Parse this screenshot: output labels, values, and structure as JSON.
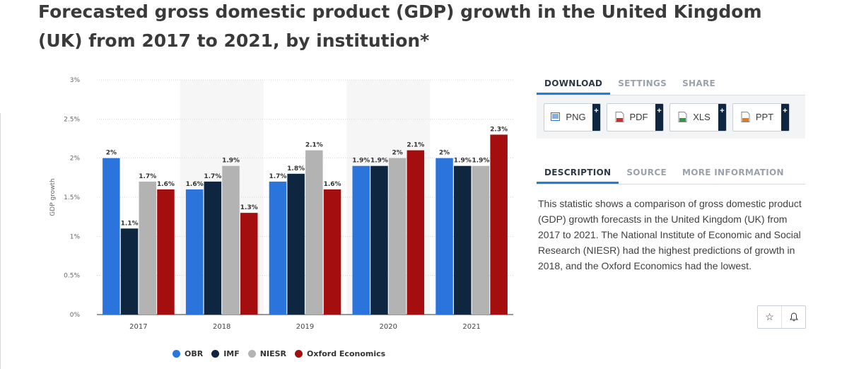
{
  "title": "Forecasted gross domestic product (GDP) growth in the United Kingdom (UK) from 2017 to 2021, by institution*",
  "chart_data": {
    "type": "bar",
    "categories": [
      "2017",
      "2018",
      "2019",
      "2020",
      "2021"
    ],
    "series": [
      {
        "name": "OBR",
        "color": "#2a74dc",
        "values": [
          2,
          1.6,
          1.7,
          1.9,
          2
        ],
        "labels": [
          "2%",
          "1.6%",
          "1.7%",
          "1.9%",
          "2%"
        ]
      },
      {
        "name": "IMF",
        "color": "#0f2640",
        "values": [
          1.1,
          1.7,
          1.8,
          1.9,
          1.9
        ],
        "labels": [
          "1.1%",
          "1.7%",
          "1.8%",
          "1.9%",
          "1.9%"
        ]
      },
      {
        "name": "NIESR",
        "color": "#b3b3b3",
        "values": [
          1.7,
          1.9,
          2.1,
          2,
          1.9
        ],
        "labels": [
          "1.7%",
          "1.9%",
          "2.1%",
          "2%",
          "1.9%"
        ]
      },
      {
        "name": "Oxford Economics",
        "color": "#a50e0e",
        "values": [
          1.6,
          1.3,
          1.6,
          2.1,
          2.3
        ],
        "labels": [
          "1.6%",
          "1.3%",
          "1.6%",
          "2.1%",
          "2.3%"
        ]
      }
    ],
    "ylabel": "GDP growth",
    "xlabel": "",
    "ylim": [
      0,
      3
    ],
    "yticks": [
      0,
      0.5,
      1,
      1.5,
      2,
      2.5,
      3
    ],
    "ytick_labels": [
      "0%",
      "0.5%",
      "1%",
      "1.5%",
      "2%",
      "2.5%",
      "3%"
    ],
    "grid": true,
    "legend_position": "bottom"
  },
  "panel": {
    "top_tabs": [
      "DOWNLOAD",
      "SETTINGS",
      "SHARE"
    ],
    "downloads": [
      {
        "label": "PNG",
        "icon": "png-file-icon"
      },
      {
        "label": "PDF",
        "icon": "pdf-file-icon"
      },
      {
        "label": "XLS",
        "icon": "xls-file-icon"
      },
      {
        "label": "PPT",
        "icon": "ppt-file-icon"
      }
    ],
    "plus": "+",
    "desc_tabs": [
      "DESCRIPTION",
      "SOURCE",
      "MORE INFORMATION"
    ],
    "description": "This statistic shows a comparison of gross domestic product (GDP) growth forecasts in the United Kingdom (UK) from 2017 to 2021. The National Institute of Economic and Social Research (NIESR) had the highest predictions of growth in 2018, and the Oxford Economics had the lowest.",
    "star_glyph": "☆",
    "bell_glyph": "🔔"
  }
}
